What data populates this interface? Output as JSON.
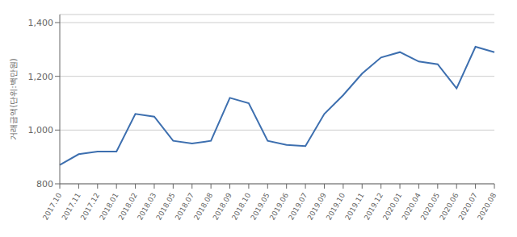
{
  "chart_data": {
    "type": "line",
    "ylabel": "거래금액(단위:백만원)",
    "categories": [
      "2017.10",
      "2017.11",
      "2017.12",
      "2018.01",
      "2018.02",
      "2018.03",
      "2018.05",
      "2018.07",
      "2018.08",
      "2018.09",
      "2018.10",
      "2019.05",
      "2019.06",
      "2019.07",
      "2019.09",
      "2019.10",
      "2019.11",
      "2019.12",
      "2020.01",
      "2020.04",
      "2020.05",
      "2020.06",
      "2020.07",
      "2020.08"
    ],
    "values": [
      870,
      910,
      920,
      920,
      1060,
      1050,
      960,
      950,
      960,
      1120,
      1100,
      960,
      945,
      940,
      1060,
      1130,
      1210,
      1270,
      1290,
      1255,
      1245,
      1155,
      1310,
      1290
    ],
    "color": "#3d6faf",
    "ylim": [
      800,
      1430
    ],
    "yticks": [
      800,
      {
        "value": 1000,
        "label": "1,000"
      },
      {
        "value": 1200,
        "label": "1,200"
      },
      {
        "value": 1400,
        "label": "1,400"
      }
    ],
    "grid": true
  }
}
